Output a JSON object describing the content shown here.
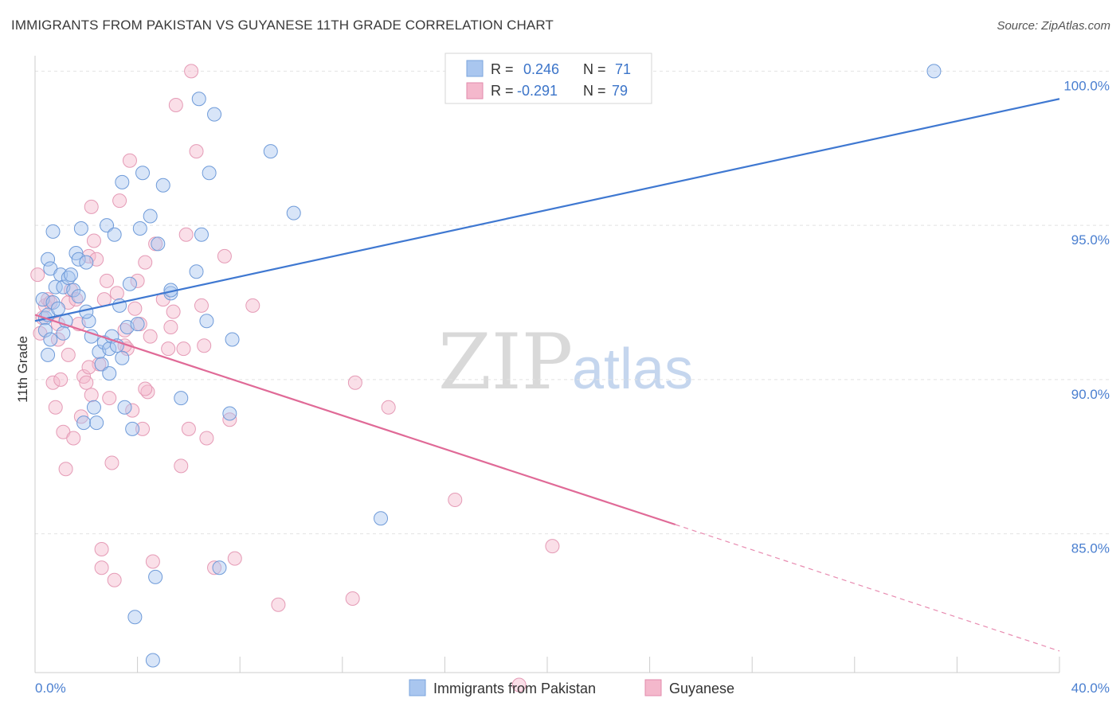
{
  "title": "IMMIGRANTS FROM PAKISTAN VS GUYANESE 11TH GRADE CORRELATION CHART",
  "source": "Source: ZipAtlas.com",
  "watermark": {
    "zip": "ZIP",
    "atlas": "atlas"
  },
  "colors": {
    "blue": "#4a7fd0",
    "blue_fill": "#a9c6ef",
    "pink": "#e06a97",
    "pink_fill": "#f4b8cc",
    "grid": "#e2e2e2"
  },
  "legend": {
    "rows": [
      {
        "r_label": "R =",
        "r_value": "0.246",
        "n_label": "N =",
        "n_value": "71"
      },
      {
        "r_label": "R =",
        "r_value": "-0.291",
        "n_label": "N =",
        "n_value": "79"
      }
    ]
  },
  "bottom_legend": [
    "Immigrants from Pakistan",
    "Guyanese"
  ],
  "chart_data": {
    "type": "scatter",
    "title": "IMMIGRANTS FROM PAKISTAN VS GUYANESE 11TH GRADE CORRELATION CHART",
    "xlabel": "",
    "ylabel": "11th Grade",
    "xlim": [
      0,
      40
    ],
    "ylim": [
      80.5,
      100.5
    ],
    "x_tick_labels": [
      "0.0%",
      "40.0%"
    ],
    "y_ticks": [
      85,
      90,
      95,
      100
    ],
    "y_tick_labels": [
      "85.0%",
      "90.0%",
      "95.0%",
      "100.0%"
    ],
    "series": [
      {
        "name": "Immigrants from Pakistan",
        "color": "#4a7fd0",
        "trend": {
          "x0": 0,
          "y0": 91.9,
          "x1": 40,
          "y1": 99.1
        },
        "points": [
          [
            0.3,
            92.6
          ],
          [
            0.4,
            92.0
          ],
          [
            0.4,
            91.6
          ],
          [
            0.5,
            93.9
          ],
          [
            0.5,
            92.1
          ],
          [
            0.5,
            90.8
          ],
          [
            0.6,
            93.6
          ],
          [
            0.7,
            94.8
          ],
          [
            0.7,
            92.5
          ],
          [
            0.8,
            93.0
          ],
          [
            0.9,
            92.3
          ],
          [
            1.0,
            93.4
          ],
          [
            1.1,
            93.0
          ],
          [
            1.2,
            91.9
          ],
          [
            1.3,
            93.3
          ],
          [
            1.4,
            93.4
          ],
          [
            1.5,
            92.9
          ],
          [
            1.6,
            94.1
          ],
          [
            1.7,
            92.7
          ],
          [
            1.7,
            93.9
          ],
          [
            1.8,
            94.9
          ],
          [
            1.9,
            88.6
          ],
          [
            2.0,
            93.8
          ],
          [
            2.1,
            91.9
          ],
          [
            2.2,
            91.4
          ],
          [
            2.3,
            89.1
          ],
          [
            2.4,
            88.6
          ],
          [
            2.5,
            90.9
          ],
          [
            2.6,
            90.5
          ],
          [
            2.7,
            91.2
          ],
          [
            2.8,
            95.0
          ],
          [
            2.9,
            91.0
          ],
          [
            3.0,
            91.4
          ],
          [
            3.1,
            94.7
          ],
          [
            3.2,
            91.1
          ],
          [
            3.3,
            92.4
          ],
          [
            3.4,
            90.7
          ],
          [
            3.5,
            89.1
          ],
          [
            3.6,
            91.7
          ],
          [
            3.7,
            93.1
          ],
          [
            3.8,
            88.4
          ],
          [
            3.9,
            82.3
          ],
          [
            4.1,
            94.9
          ],
          [
            4.2,
            96.7
          ],
          [
            4.5,
            95.3
          ],
          [
            4.6,
            80.9
          ],
          [
            4.7,
            83.6
          ],
          [
            4.8,
            94.4
          ],
          [
            5.0,
            96.3
          ],
          [
            5.3,
            92.8
          ],
          [
            5.3,
            92.9
          ],
          [
            5.7,
            89.4
          ],
          [
            6.4,
            99.1
          ],
          [
            6.5,
            94.7
          ],
          [
            6.7,
            91.9
          ],
          [
            6.8,
            96.7
          ],
          [
            7.0,
            98.6
          ],
          [
            6.3,
            93.5
          ],
          [
            7.2,
            83.9
          ],
          [
            7.6,
            88.9
          ],
          [
            7.7,
            91.3
          ],
          [
            9.2,
            97.4
          ],
          [
            10.1,
            95.4
          ],
          [
            13.5,
            85.5
          ],
          [
            35.1,
            100.0
          ],
          [
            1.1,
            91.5
          ],
          [
            3.4,
            96.4
          ],
          [
            2.9,
            90.2
          ],
          [
            0.6,
            91.3
          ],
          [
            4.0,
            91.8
          ],
          [
            2.0,
            92.2
          ]
        ]
      },
      {
        "name": "Guyanese",
        "color": "#e06a97",
        "trend": {
          "x0": 0,
          "y0": 92.1,
          "x1": 25,
          "y1": 85.3,
          "x2": 40,
          "y2": 81.2
        },
        "points": [
          [
            0.1,
            93.4
          ],
          [
            0.2,
            91.5
          ],
          [
            0.3,
            92.0
          ],
          [
            0.4,
            92.4
          ],
          [
            0.5,
            92.6
          ],
          [
            0.6,
            92.5
          ],
          [
            0.7,
            89.9
          ],
          [
            0.8,
            89.1
          ],
          [
            0.9,
            91.3
          ],
          [
            1.0,
            90.0
          ],
          [
            1.1,
            88.3
          ],
          [
            1.2,
            87.1
          ],
          [
            1.3,
            92.5
          ],
          [
            1.4,
            92.9
          ],
          [
            1.5,
            88.1
          ],
          [
            1.6,
            92.6
          ],
          [
            1.7,
            91.8
          ],
          [
            1.8,
            88.8
          ],
          [
            1.9,
            90.1
          ],
          [
            2.0,
            89.9
          ],
          [
            2.1,
            94.0
          ],
          [
            2.2,
            95.6
          ],
          [
            2.3,
            94.5
          ],
          [
            2.4,
            93.9
          ],
          [
            2.5,
            90.5
          ],
          [
            2.6,
            84.5
          ],
          [
            2.6,
            83.9
          ],
          [
            2.7,
            92.6
          ],
          [
            2.8,
            93.2
          ],
          [
            2.9,
            89.4
          ],
          [
            3.0,
            87.3
          ],
          [
            3.1,
            83.5
          ],
          [
            3.2,
            92.8
          ],
          [
            3.3,
            95.8
          ],
          [
            3.5,
            91.6
          ],
          [
            3.6,
            91.0
          ],
          [
            3.7,
            97.1
          ],
          [
            3.8,
            89.0
          ],
          [
            3.9,
            92.3
          ],
          [
            4.0,
            93.2
          ],
          [
            4.1,
            91.8
          ],
          [
            4.2,
            88.4
          ],
          [
            4.3,
            93.8
          ],
          [
            4.4,
            89.6
          ],
          [
            4.5,
            91.4
          ],
          [
            4.6,
            84.1
          ],
          [
            4.7,
            94.4
          ],
          [
            5.0,
            92.6
          ],
          [
            5.2,
            91.0
          ],
          [
            5.3,
            91.7
          ],
          [
            5.4,
            92.2
          ],
          [
            5.5,
            98.9
          ],
          [
            5.7,
            87.2
          ],
          [
            5.8,
            91.0
          ],
          [
            5.9,
            94.7
          ],
          [
            6.0,
            88.4
          ],
          [
            6.1,
            100.0
          ],
          [
            6.3,
            97.4
          ],
          [
            6.5,
            92.4
          ],
          [
            6.6,
            91.1
          ],
          [
            6.7,
            88.1
          ],
          [
            7.0,
            83.9
          ],
          [
            7.4,
            94.0
          ],
          [
            7.6,
            88.7
          ],
          [
            7.8,
            84.2
          ],
          [
            8.5,
            92.4
          ],
          [
            9.5,
            82.7
          ],
          [
            12.4,
            82.9
          ],
          [
            12.5,
            89.9
          ],
          [
            13.8,
            89.1
          ],
          [
            16.4,
            86.1
          ],
          [
            20.2,
            84.6
          ],
          [
            18.9,
            80.1
          ],
          [
            1.3,
            90.8
          ],
          [
            2.1,
            90.4
          ],
          [
            0.9,
            91.8
          ],
          [
            3.5,
            91.1
          ],
          [
            4.3,
            89.7
          ],
          [
            2.2,
            89.5
          ]
        ]
      }
    ]
  }
}
